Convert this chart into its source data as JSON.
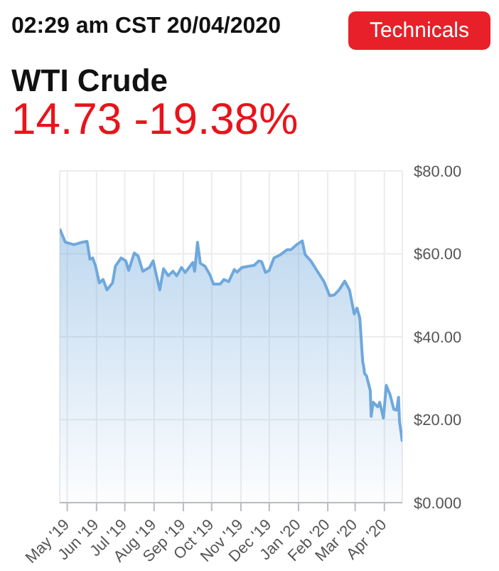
{
  "chart_data": {
    "type": "area",
    "title": "WTI Crude",
    "subtitle": "14.73 -19.38%",
    "annotations": [
      "02:29 am CST 20/04/2020",
      "Technicals"
    ],
    "x": [
      "2019-04-23",
      "2019-04-29",
      "2019-05-08",
      "2019-05-17",
      "2019-05-22",
      "2019-05-25",
      "2019-05-28",
      "2019-05-31",
      "2019-06-04",
      "2019-06-08",
      "2019-06-12",
      "2019-06-18",
      "2019-06-21",
      "2019-06-27",
      "2019-07-02",
      "2019-07-05",
      "2019-07-11",
      "2019-07-15",
      "2019-07-20",
      "2019-07-27",
      "2019-07-31",
      "2019-08-03",
      "2019-08-07",
      "2019-08-11",
      "2019-08-16",
      "2019-08-21",
      "2019-08-25",
      "2019-08-30",
      "2019-09-03",
      "2019-09-08",
      "2019-09-11",
      "2019-09-13",
      "2019-09-16",
      "2019-09-19",
      "2019-09-24",
      "2019-09-29",
      "2019-10-03",
      "2019-10-10",
      "2019-10-14",
      "2019-10-19",
      "2019-10-25",
      "2019-10-28",
      "2019-11-02",
      "2019-11-09",
      "2019-11-15",
      "2019-11-20",
      "2019-11-23",
      "2019-11-27",
      "2019-12-01",
      "2019-12-06",
      "2019-12-13",
      "2019-12-20",
      "2019-12-24",
      "2019-12-30",
      "2020-01-05",
      "2020-01-08",
      "2020-01-14",
      "2020-01-21",
      "2020-01-28",
      "2020-02-03",
      "2020-02-08",
      "2020-02-13",
      "2020-02-19",
      "2020-02-24",
      "2020-02-29",
      "2020-03-03",
      "2020-03-06",
      "2020-03-09",
      "2020-03-10",
      "2020-03-11",
      "2020-03-13",
      "2020-03-17",
      "2020-03-18",
      "2020-03-20",
      "2020-03-25",
      "2020-03-27",
      "2020-03-31",
      "2020-04-03",
      "2020-04-07",
      "2020-04-11",
      "2020-04-14",
      "2020-04-16",
      "2020-04-17",
      "2020-04-20"
    ],
    "series": [
      {
        "color": "#6fa8dc",
        "values": [
          66.0,
          62.8,
          62.2,
          62.8,
          63.0,
          58.7,
          59.0,
          57.0,
          53.0,
          53.8,
          51.3,
          53.0,
          57.0,
          59.0,
          58.3,
          56.0,
          60.2,
          59.5,
          55.8,
          56.7,
          58.3,
          55.3,
          51.3,
          56.4,
          54.7,
          55.8,
          54.7,
          56.7,
          55.5,
          57.0,
          57.9,
          55.8,
          62.8,
          57.7,
          57.0,
          55.0,
          52.7,
          52.7,
          53.8,
          53.3,
          56.2,
          55.6,
          56.7,
          57.0,
          57.2,
          58.3,
          58.1,
          55.5,
          56.0,
          59.0,
          59.8,
          61.0,
          61.0,
          62.2,
          63.1,
          59.8,
          58.3,
          55.8,
          53.3,
          49.9,
          50.1,
          51.3,
          53.4,
          51.3,
          45.5,
          46.9,
          44.4,
          34.0,
          32.9,
          31.1,
          30.6,
          27.1,
          20.8,
          24.2,
          23.1,
          24.2,
          20.4,
          28.3,
          26.0,
          22.5,
          22.3,
          25.4,
          19.6,
          14.7
        ]
      }
    ],
    "xlim": [
      "2019-04-23",
      "2020-04-20"
    ],
    "xticks": [
      {
        "value": "2019-05-01",
        "label": "May '19"
      },
      {
        "value": "2019-06-01",
        "label": "Jun '19"
      },
      {
        "value": "2019-07-01",
        "label": "Jul '19"
      },
      {
        "value": "2019-08-01",
        "label": "Aug '19"
      },
      {
        "value": "2019-09-01",
        "label": "Sep '19"
      },
      {
        "value": "2019-10-01",
        "label": "Oct '19"
      },
      {
        "value": "2019-11-01",
        "label": "Nov '19"
      },
      {
        "value": "2019-12-01",
        "label": "Dec '19"
      },
      {
        "value": "2020-01-01",
        "label": "Jan '20"
      },
      {
        "value": "2020-02-01",
        "label": "Feb '20"
      },
      {
        "value": "2020-03-01",
        "label": "Mar '20"
      },
      {
        "value": "2020-04-01",
        "label": "Apr '20"
      }
    ],
    "ylim": [
      0,
      80
    ],
    "yticks": [
      {
        "value": 0,
        "label": "$0.000"
      },
      {
        "value": 20,
        "label": "$20.00"
      },
      {
        "value": 40,
        "label": "$40.00"
      },
      {
        "value": 60,
        "label": "$60.00"
      },
      {
        "value": 80,
        "label": "$80.00"
      }
    ],
    "grid": true
  }
}
